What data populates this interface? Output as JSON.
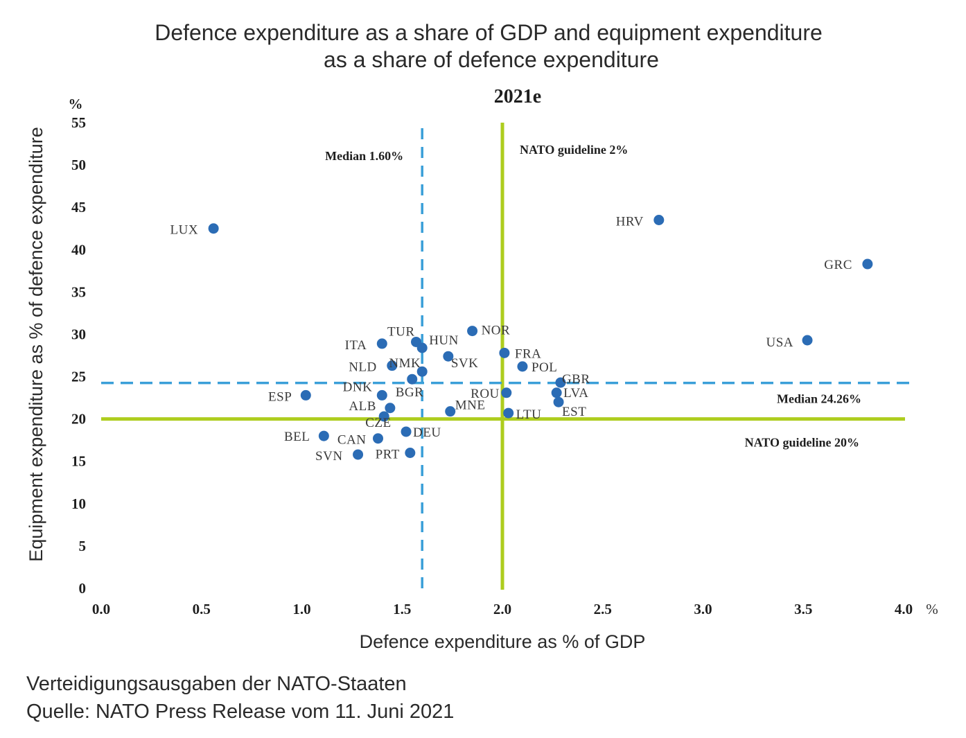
{
  "chart_data": {
    "type": "scatter",
    "title_line1": "Defence expenditure as a share of GDP and equipment expenditure",
    "title_line2": "as a share of defence expenditure",
    "subtitle": "2021e",
    "xlabel": "Defence expenditure as % of GDP",
    "ylabel": "Equipment expenditure as % of defence expenditure",
    "x_unit": "%",
    "y_unit": "%",
    "xlim": [
      0,
      4
    ],
    "ylim": [
      0,
      55
    ],
    "x_ticks": [
      "0.0",
      "0.5",
      "1.0",
      "1.5",
      "2.0",
      "2.5",
      "3.0",
      "3.5",
      "4.0"
    ],
    "y_ticks": [
      "0",
      "5",
      "10",
      "15",
      "20",
      "25",
      "30",
      "35",
      "40",
      "45",
      "50",
      "55"
    ],
    "point_color": "#2b6cb5",
    "points": [
      {
        "label": "LUX",
        "x": 0.56,
        "y": 42.5
      },
      {
        "label": "HRV",
        "x": 2.78,
        "y": 43.5
      },
      {
        "label": "GRC",
        "x": 3.82,
        "y": 38.3
      },
      {
        "label": "USA",
        "x": 3.52,
        "y": 29.3
      },
      {
        "label": "NOR",
        "x": 1.85,
        "y": 30.4
      },
      {
        "label": "TUR",
        "x": 1.57,
        "y": 29.1
      },
      {
        "label": "ITA",
        "x": 1.4,
        "y": 28.9
      },
      {
        "label": "HUN",
        "x": 1.6,
        "y": 28.4
      },
      {
        "label": "FRA",
        "x": 2.01,
        "y": 27.8
      },
      {
        "label": "SVK",
        "x": 1.73,
        "y": 27.4
      },
      {
        "label": "NLD",
        "x": 1.45,
        "y": 26.3
      },
      {
        "label": "POL",
        "x": 2.1,
        "y": 26.2
      },
      {
        "label": "NMK",
        "x": 1.6,
        "y": 25.6
      },
      {
        "label": "BGR",
        "x": 1.55,
        "y": 24.7
      },
      {
        "label": "GBR",
        "x": 2.29,
        "y": 24.3
      },
      {
        "label": "DNK",
        "x": 1.4,
        "y": 22.8
      },
      {
        "label": "ESP",
        "x": 1.02,
        "y": 22.8
      },
      {
        "label": "ROU",
        "x": 2.02,
        "y": 23.1
      },
      {
        "label": "LVA",
        "x": 2.27,
        "y": 23.1
      },
      {
        "label": "EST",
        "x": 2.28,
        "y": 22.0
      },
      {
        "label": "ALB",
        "x": 1.44,
        "y": 21.3
      },
      {
        "label": "MNE",
        "x": 1.74,
        "y": 20.9
      },
      {
        "label": "LTU",
        "x": 2.03,
        "y": 20.7
      },
      {
        "label": "CZE",
        "x": 1.41,
        "y": 20.3
      },
      {
        "label": "DEU",
        "x": 1.52,
        "y": 18.5
      },
      {
        "label": "BEL",
        "x": 1.11,
        "y": 18.0
      },
      {
        "label": "CAN",
        "x": 1.38,
        "y": 17.7
      },
      {
        "label": "SVN",
        "x": 1.28,
        "y": 15.8
      },
      {
        "label": "PRT",
        "x": 1.54,
        "y": 16.0
      }
    ],
    "reference_lines": [
      {
        "label": "Median 1.60%",
        "axis": "x",
        "value": 1.6,
        "style": "dashed",
        "color": "#3a9fd8"
      },
      {
        "label": "NATO guideline 2%",
        "axis": "x",
        "value": 2.0,
        "style": "solid",
        "color": "#aecd1e"
      },
      {
        "label": "Median 24.26%",
        "axis": "y",
        "value": 24.26,
        "style": "dashed",
        "color": "#3a9fd8"
      },
      {
        "label": "NATO guideline 20%",
        "axis": "y",
        "value": 20,
        "style": "solid",
        "color": "#aecd1e"
      }
    ]
  },
  "footer": {
    "line1": "Verteidigungsausgaben der NATO-Staaten",
    "line2": "Quelle: NATO Press Release vom 11. Juni 2021"
  }
}
